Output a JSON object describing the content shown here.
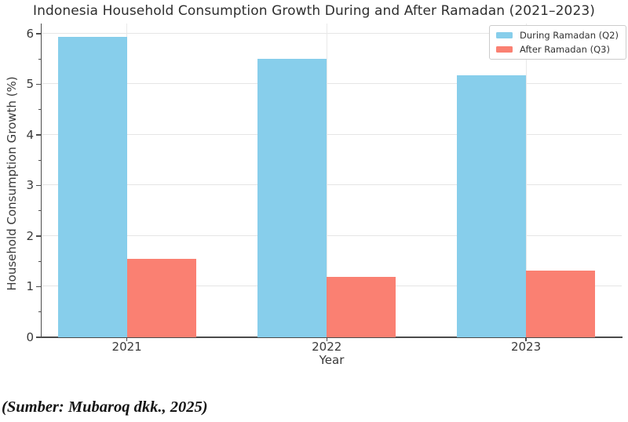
{
  "title": "Indonesia Household Consumption Growth During and After Ramadan (2021–2023)",
  "chart_data": {
    "type": "bar",
    "categories": [
      "2021",
      "2022",
      "2023"
    ],
    "series": [
      {
        "name": "During Ramadan (Q2)",
        "color": "#87CEEB",
        "values": [
          5.93,
          5.51,
          5.17
        ]
      },
      {
        "name": "After Ramadan (Q3)",
        "color": "#FA8072",
        "values": [
          1.55,
          1.2,
          1.31
        ]
      }
    ],
    "xlabel": "Year",
    "ylabel": "Household Consumption Growth (%)",
    "ylim": [
      0,
      6.2
    ],
    "yticks": [
      0,
      1,
      2,
      3,
      4,
      5,
      6
    ],
    "grid": "on",
    "legend_position": "upper right"
  },
  "caption": "(Sumber: Mubaroq dkk., 2025)",
  "colors": {
    "bar_during": "#87CEEB",
    "bar_after": "#FA8072",
    "grid": "#e5e5e5",
    "axis": "#4d4d4d",
    "text": "#3a3a3a"
  }
}
